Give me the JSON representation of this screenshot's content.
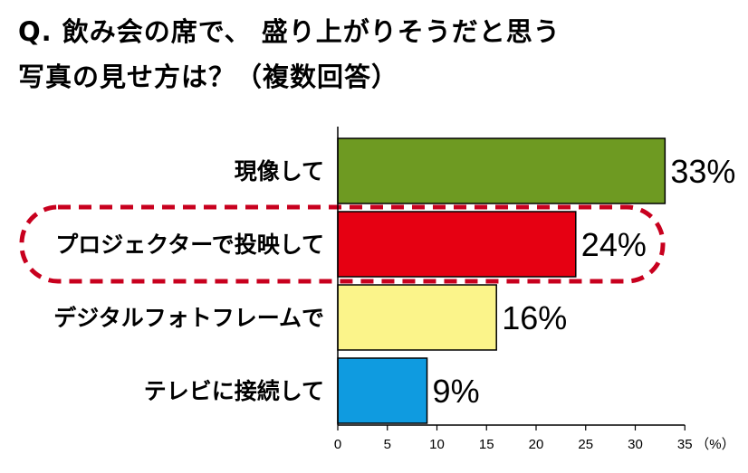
{
  "title_lines": [
    "Q. 飲み会の席で、 盛り上がりそうだと思う",
    "写真の見せ方は？（複数回答）"
  ],
  "chart_data": {
    "type": "bar",
    "orientation": "horizontal",
    "title": "Q. 飲み会の席で、 盛り上がりそうだと思う 写真の見せ方は？（複数回答）",
    "categories": [
      "現像して",
      "プロジェクターで投映して",
      "デジタルフォトフレームで",
      "テレビに接続して"
    ],
    "values": [
      33,
      24,
      16,
      9
    ],
    "value_labels": [
      "33%",
      "24%",
      "16%",
      "9%"
    ],
    "colors": [
      "#6e9a22",
      "#e60012",
      "#fbf48a",
      "#0f9be0"
    ],
    "highlight_index": 1,
    "highlight_color": "#c8001e",
    "xlim": [
      0,
      35
    ],
    "xticks": [
      0,
      5,
      10,
      15,
      20,
      25,
      30,
      35
    ],
    "x_unit": "（%）",
    "grid": false
  }
}
